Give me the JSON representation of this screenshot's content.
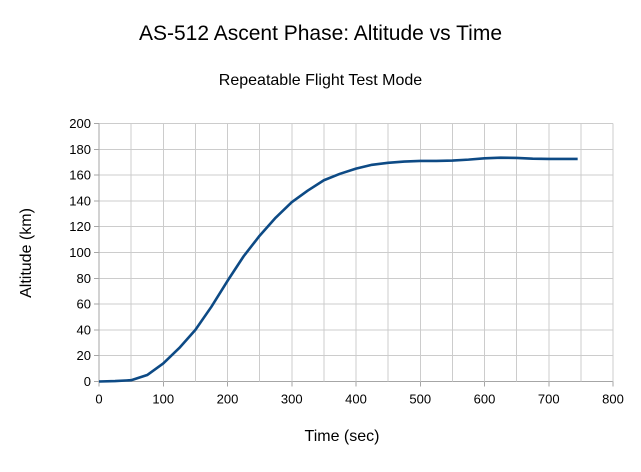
{
  "chart_data": {
    "type": "line",
    "title": "AS-512 Ascent Phase: Altitude vs Time",
    "subtitle": "Repeatable Flight Test Mode",
    "xlabel": "Time (sec)",
    "ylabel": "Altitude (km)",
    "xlim": [
      0,
      800
    ],
    "ylim": [
      0,
      200
    ],
    "x_tick_interval": 100,
    "y_tick_interval": 20,
    "x_minor_grid_interval": 50,
    "grid": true,
    "legend": false,
    "series": [
      {
        "name": "altitude",
        "color": "#0d4a85",
        "x": [
          0,
          25,
          50,
          75,
          100,
          125,
          150,
          175,
          200,
          225,
          250,
          275,
          300,
          325,
          350,
          375,
          400,
          425,
          450,
          475,
          500,
          525,
          550,
          575,
          600,
          625,
          650,
          675,
          700,
          725,
          745
        ],
        "y": [
          0,
          0.3,
          1,
          5,
          14,
          26,
          40,
          58,
          78,
          97,
          113,
          127,
          139,
          148,
          156,
          161,
          165,
          168,
          169.5,
          170.5,
          171,
          171,
          171.3,
          172,
          173,
          173.5,
          173.3,
          172.7,
          172.5,
          172.5,
          172.5
        ]
      }
    ]
  },
  "style": {
    "background": "#ffffff",
    "grid_color": "#cccccc",
    "axis_color": "#a6a6a6",
    "tick_color": "#a6a6a6",
    "text_color": "#000000",
    "line_color": "#0d4a85"
  }
}
